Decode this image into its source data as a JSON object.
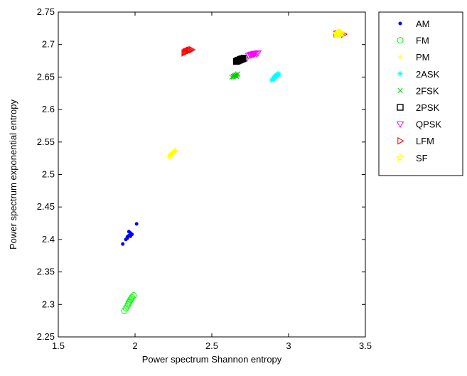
{
  "chart_data": {
    "type": "scatter",
    "title": "",
    "xlabel": "Power spectrum Shannon entropy",
    "ylabel": "Power spectrum exponential entropy",
    "xlim": [
      1.5,
      3.5
    ],
    "ylim": [
      2.25,
      2.75
    ],
    "xticks": [
      1.5,
      2,
      2.5,
      3,
      3.5
    ],
    "xtick_labels": [
      "1.5",
      "2",
      "2.5",
      "3",
      "3.5"
    ],
    "yticks": [
      2.25,
      2.3,
      2.35,
      2.4,
      2.45,
      2.5,
      2.55,
      2.6,
      2.65,
      2.7,
      2.75
    ],
    "ytick_labels": [
      "2.25",
      "2.3",
      "2.35",
      "2.4",
      "2.45",
      "2.5",
      "2.55",
      "2.6",
      "2.65",
      "2.7",
      "2.75"
    ],
    "grid": false,
    "legend_position": "outside-top-right",
    "series": [
      {
        "name": "AM",
        "color": "#0000ff",
        "marker": "point",
        "points": [
          [
            1.92,
            2.393
          ],
          [
            1.94,
            2.4
          ],
          [
            1.95,
            2.404
          ],
          [
            1.96,
            2.406
          ],
          [
            1.97,
            2.41
          ],
          [
            1.95,
            2.402
          ],
          [
            1.98,
            2.408
          ],
          [
            1.96,
            2.412
          ],
          [
            1.97,
            2.405
          ],
          [
            2.01,
            2.424
          ]
        ]
      },
      {
        "name": "FM",
        "color": "#00ff00",
        "marker": "circle",
        "points": [
          [
            1.93,
            2.29
          ],
          [
            1.94,
            2.294
          ],
          [
            1.95,
            2.297
          ],
          [
            1.955,
            2.3
          ],
          [
            1.96,
            2.303
          ],
          [
            1.965,
            2.305
          ],
          [
            1.97,
            2.307
          ],
          [
            1.975,
            2.309
          ],
          [
            1.98,
            2.311
          ],
          [
            1.99,
            2.314
          ]
        ]
      },
      {
        "name": "PM",
        "color": "#ffff00",
        "marker": "plus",
        "points": [
          [
            2.22,
            2.528
          ],
          [
            2.23,
            2.53
          ],
          [
            2.235,
            2.531
          ],
          [
            2.24,
            2.533
          ],
          [
            2.245,
            2.532
          ],
          [
            2.25,
            2.534
          ],
          [
            2.255,
            2.535
          ],
          [
            2.26,
            2.537
          ],
          [
            2.23,
            2.527
          ],
          [
            2.265,
            2.536
          ]
        ]
      },
      {
        "name": "2ASK",
        "color": "#00ffff",
        "marker": "asterisk",
        "points": [
          [
            2.89,
            2.645
          ],
          [
            2.9,
            2.647
          ],
          [
            2.905,
            2.649
          ],
          [
            2.91,
            2.65
          ],
          [
            2.915,
            2.651
          ],
          [
            2.92,
            2.652
          ],
          [
            2.925,
            2.653
          ],
          [
            2.93,
            2.655
          ],
          [
            2.935,
            2.654
          ],
          [
            2.9,
            2.646
          ]
        ]
      },
      {
        "name": "2FSK",
        "color": "#00cc00",
        "marker": "x",
        "points": [
          [
            2.63,
            2.65
          ],
          [
            2.64,
            2.651
          ],
          [
            2.645,
            2.652
          ],
          [
            2.65,
            2.652
          ],
          [
            2.655,
            2.653
          ],
          [
            2.66,
            2.653
          ],
          [
            2.665,
            2.654
          ],
          [
            2.67,
            2.655
          ],
          [
            2.64,
            2.65
          ],
          [
            2.66,
            2.651
          ]
        ]
      },
      {
        "name": "2PSK",
        "color": "#000000",
        "marker": "square",
        "points": [
          [
            2.66,
            2.674
          ],
          [
            2.665,
            2.675
          ],
          [
            2.67,
            2.675
          ],
          [
            2.675,
            2.676
          ],
          [
            2.68,
            2.676
          ],
          [
            2.685,
            2.677
          ],
          [
            2.69,
            2.677
          ],
          [
            2.695,
            2.678
          ],
          [
            2.7,
            2.678
          ],
          [
            2.71,
            2.679
          ]
        ]
      },
      {
        "name": "QPSK",
        "color": "#ff00ff",
        "marker": "triangle-down",
        "points": [
          [
            2.74,
            2.683
          ],
          [
            2.75,
            2.684
          ],
          [
            2.755,
            2.684
          ],
          [
            2.76,
            2.685
          ],
          [
            2.765,
            2.685
          ],
          [
            2.77,
            2.685
          ],
          [
            2.775,
            2.686
          ],
          [
            2.78,
            2.686
          ],
          [
            2.79,
            2.686
          ],
          [
            2.8,
            2.687
          ]
        ]
      },
      {
        "name": "LFM",
        "color": "#ff0000",
        "marker": "triangle-right",
        "points": [
          [
            2.32,
            2.687
          ],
          [
            2.325,
            2.688
          ],
          [
            2.33,
            2.689
          ],
          [
            2.335,
            2.689
          ],
          [
            2.34,
            2.69
          ],
          [
            2.345,
            2.69
          ],
          [
            2.35,
            2.691
          ],
          [
            2.355,
            2.691
          ],
          [
            2.36,
            2.692
          ],
          [
            2.37,
            2.692
          ],
          [
            3.31,
            2.716
          ],
          [
            3.32,
            2.717
          ],
          [
            3.33,
            2.717
          ],
          [
            3.34,
            2.718
          ],
          [
            3.35,
            2.717
          ],
          [
            3.36,
            2.716
          ]
        ]
      },
      {
        "name": "SF",
        "color": "#ffff00",
        "marker": "star",
        "points": [
          [
            3.31,
            2.716
          ],
          [
            3.315,
            2.717
          ],
          [
            3.32,
            2.717
          ],
          [
            3.325,
            2.718
          ],
          [
            3.33,
            2.717
          ],
          [
            3.335,
            2.718
          ],
          [
            3.34,
            2.717
          ],
          [
            3.345,
            2.716
          ],
          [
            3.33,
            2.719
          ],
          [
            3.32,
            2.716
          ]
        ]
      }
    ]
  }
}
